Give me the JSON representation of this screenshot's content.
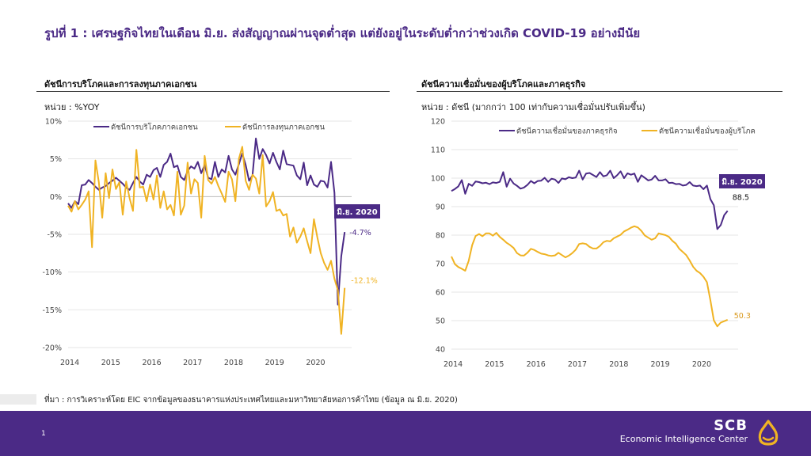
{
  "header": {
    "title": "รูปที่ 1 : เศรษฐกิจไทยในเดือน มิ.ย. ส่งสัญญาณผ่านจุดต่ำสุด แต่ยังอยู่ในระดับต่ำกว่าช่วงเกิด COVID-19 อย่างมีนัย"
  },
  "left": {
    "title": "ดัชนีการบริโภคและการลงทุนภาคเอกชน",
    "unit": "หน่วย : %YOY"
  },
  "right": {
    "title": "ดัชนีความเชื่อมั่นของผู้บริโภคและภาคธุรกิจ",
    "unit": "หน่วย : ดัชนี (มากกว่า 100 เท่ากับความเชื่อมั่นปรับเพิ่มขึ้น)"
  },
  "source": "ที่มา : การวิเคราะห์โดย EIC จากข้อมูลของธนาคารแห่งประเทศไทยและมหาวิทยาลัยหอการค้าไทย (ข้อมูล ณ มิ.ย. 2020)",
  "footer": {
    "page": "1",
    "brand": "SCB",
    "brand_sub": "Economic Intelligence Center"
  },
  "colors": {
    "purple": "#4b2a86",
    "gold": "#f0b323"
  },
  "chart_data": [
    {
      "type": "line",
      "title": "ดัชนีการบริโภคและการลงทุนภาคเอกชน",
      "ylabel": "หน่วย : %YOY",
      "ylim": [
        -20,
        10
      ],
      "yticks": [
        10,
        5,
        0,
        -5,
        -10,
        -15,
        -20
      ],
      "ytick_labels": [
        "10%",
        "5%",
        "0%",
        "-5%",
        "-10%",
        "-15%",
        "-20%"
      ],
      "xlim": [
        2014,
        2020.92
      ],
      "xticks": [
        "2014",
        "2015",
        "2016",
        "2017",
        "2018",
        "2019",
        "2020"
      ],
      "legend": "top",
      "tag": "มิ.ย. 2020",
      "series": [
        {
          "name": "ดัชนีการบริโภคภาคเอกชน",
          "color": "#4b2a86",
          "end_label": "-4.7%",
          "values": [
            -0.9,
            -1.5,
            -0.6,
            -1.0,
            1.5,
            1.6,
            2.2,
            1.8,
            1.3,
            0.9,
            1.2,
            1.4,
            1.8,
            2.1,
            2.5,
            2.1,
            1.7,
            1.2,
            0.9,
            1.8,
            2.6,
            2.0,
            1.6,
            2.9,
            2.6,
            3.5,
            3.8,
            2.6,
            4.2,
            4.6,
            5.7,
            3.9,
            4.1,
            2.6,
            2.2,
            3.4,
            4.0,
            3.7,
            4.6,
            3.1,
            4.2,
            2.5,
            2.3,
            4.6,
            2.6,
            3.6,
            3.2,
            5.4,
            3.6,
            2.9,
            4.3,
            5.7,
            4.2,
            2.1,
            2.8,
            7.7,
            5.0,
            6.3,
            5.5,
            4.4,
            5.8,
            4.6,
            3.6,
            6.1,
            4.3,
            4.2,
            4.1,
            2.8,
            2.3,
            4.5,
            1.5,
            2.8,
            1.6,
            1.3,
            2.1,
            2.0,
            1.2,
            4.6,
            0.5,
            -14.3,
            -7.9,
            -4.7
          ]
        },
        {
          "name": "ดัชนีการลงทุนภาคเอกชน",
          "color": "#f0b323",
          "end_label": "-12.1%",
          "values": [
            -1.2,
            -2.0,
            -0.6,
            -1.7,
            -1.1,
            -0.4,
            0.7,
            -6.7,
            4.8,
            1.9,
            -2.8,
            3.1,
            -0.2,
            3.6,
            1.0,
            1.9,
            -2.4,
            2.0,
            -0.2,
            -1.9,
            6.2,
            1.2,
            1.3,
            -0.6,
            1.6,
            -0.4,
            2.8,
            -1.5,
            0.7,
            -1.7,
            -1.1,
            -2.5,
            3.3,
            -2.4,
            -1.2,
            4.5,
            0.4,
            2.3,
            1.8,
            -2.8,
            5.4,
            2.2,
            1.7,
            2.6,
            1.4,
            0.4,
            -0.7,
            3.3,
            2.3,
            -0.6,
            5.0,
            6.6,
            2.1,
            0.9,
            2.9,
            2.4,
            0.4,
            5.5,
            -1.3,
            -0.6,
            0.6,
            -1.9,
            -1.7,
            -2.5,
            -2.3,
            -5.3,
            -4.1,
            -6.1,
            -5.3,
            -4.2,
            -5.9,
            -7.5,
            -3.0,
            -5.4,
            -7.5,
            -8.8,
            -9.7,
            -8.5,
            -10.9,
            -12.4,
            -18.2,
            -12.1
          ]
        }
      ]
    },
    {
      "type": "line",
      "title": "ดัชนีความเชื่อมั่นของผู้บริโภคและภาคธุรกิจ",
      "ylabel": "หน่วย : ดัชนี (มากกว่า 100 เท่ากับความเชื่อมั่นปรับเพิ่มขึ้น)",
      "ylim": [
        40,
        120
      ],
      "yticks": [
        120,
        110,
        100,
        90,
        80,
        70,
        60,
        50,
        40
      ],
      "xlim": [
        2014,
        2020.92
      ],
      "xticks": [
        "2014",
        "2015",
        "2016",
        "2017",
        "2018",
        "2019",
        "2020"
      ],
      "legend": "top",
      "tag": "มิ.ย. 2020",
      "series": [
        {
          "name": "ดัชนีความเชื่อมั่นของภาคธุรกิจ",
          "color": "#4b2a86",
          "end_label": "88.5",
          "values": [
            95.5,
            96.2,
            97.1,
            99.3,
            94.5,
            98.0,
            97.3,
            98.8,
            98.6,
            98.2,
            98.4,
            97.9,
            98.5,
            98.3,
            98.7,
            102.1,
            97.0,
            99.8,
            98.1,
            97.3,
            96.3,
            96.7,
            97.6,
            99.0,
            98.2,
            99.0,
            99.1,
            100.1,
            98.7,
            99.8,
            99.5,
            98.3,
            99.9,
            99.6,
            100.3,
            100.0,
            100.2,
            102.6,
            99.5,
            101.6,
            101.8,
            101.1,
            100.4,
            102.1,
            100.6,
            101.0,
            102.6,
            100.0,
            101.0,
            102.4,
            100.0,
            101.7,
            101.2,
            101.6,
            98.7,
            101.0,
            100.1,
            99.2,
            99.5,
            100.8,
            99.2,
            99.2,
            99.6,
            98.3,
            98.4,
            97.9,
            98.0,
            97.4,
            97.6,
            98.6,
            97.4,
            97.2,
            97.4,
            96.1,
            97.4,
            92.6,
            90.5,
            82.1,
            83.5,
            87.0,
            88.5
          ]
        },
        {
          "name": "ดัชนีความเชื่อมั่นของผู้บริโภค",
          "color": "#f0b323",
          "end_label": "50.3",
          "values": [
            72.5,
            69.8,
            68.8,
            68.2,
            67.5,
            71.0,
            76.5,
            79.7,
            80.4,
            79.6,
            80.6,
            80.6,
            79.8,
            80.8,
            79.4,
            78.4,
            77.3,
            76.5,
            75.5,
            73.7,
            72.9,
            72.8,
            73.8,
            75.2,
            74.8,
            74.1,
            73.5,
            73.3,
            72.9,
            72.7,
            72.9,
            73.8,
            73.0,
            72.2,
            72.8,
            73.7,
            74.9,
            76.9,
            77.1,
            76.9,
            75.9,
            75.3,
            75.3,
            76.2,
            77.5,
            78.0,
            77.8,
            78.9,
            79.5,
            80.1,
            81.3,
            81.9,
            82.6,
            83.1,
            82.7,
            81.5,
            79.9,
            79.1,
            78.4,
            78.9,
            80.6,
            80.3,
            80.0,
            79.4,
            78.0,
            77.0,
            75.2,
            74.1,
            73.0,
            71.1,
            68.9,
            67.5,
            66.7,
            65.4,
            63.5,
            57.1,
            50.1,
            48.0,
            49.3,
            49.8,
            50.3
          ]
        }
      ]
    }
  ]
}
